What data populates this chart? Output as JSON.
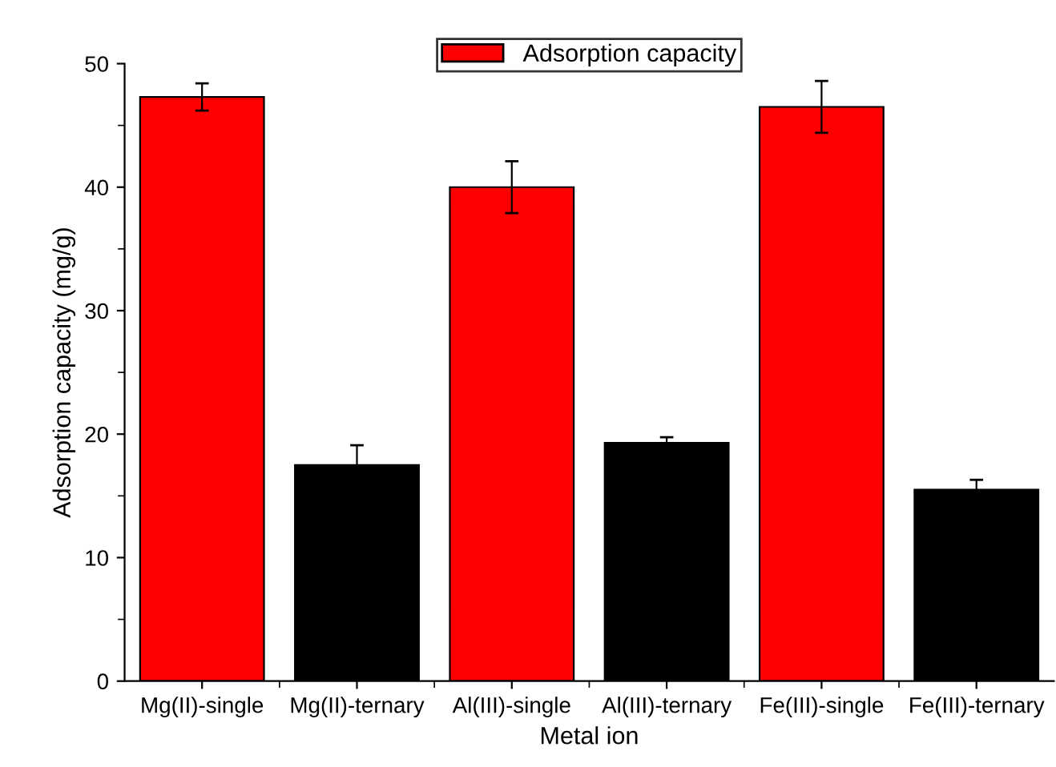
{
  "chart_data": {
    "type": "bar",
    "xlabel": "Metal ion",
    "ylabel": "Adsorption capacity (mg/g)",
    "categories": [
      "Mg(II)-single",
      "Mg(II)-ternary",
      "Al(III)-single",
      "Al(III)-ternary",
      "Fe(III)-single",
      "Fe(III)-ternary"
    ],
    "series": [
      {
        "name": "Adsorption capacity",
        "color": "#ff0000",
        "colors": [
          "#ff0000",
          "#000000",
          "#ff0000",
          "#000000",
          "#ff0000",
          "#000000"
        ],
        "values": [
          47.3,
          17.5,
          40.0,
          19.3,
          46.5,
          15.5
        ],
        "errors": [
          1.1,
          1.6,
          2.1,
          0.45,
          2.1,
          0.8
        ]
      }
    ],
    "ylim": [
      0,
      50
    ],
    "yticks": [
      0,
      10,
      20,
      30,
      40,
      50
    ],
    "grid": false,
    "legend": "top"
  }
}
